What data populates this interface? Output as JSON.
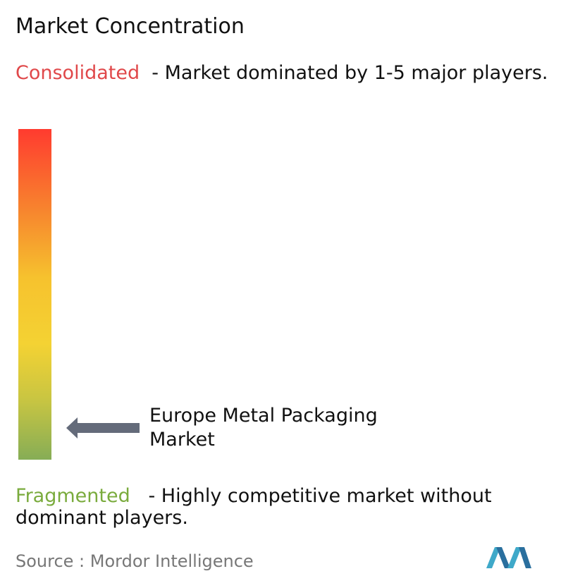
{
  "header": {
    "title": "Market Concentration"
  },
  "consolidated": {
    "label": "Consolidated",
    "description": "- Market dominated by 1-5 major players."
  },
  "marker": {
    "label": "Europe Metal Packaging Market"
  },
  "fragmented": {
    "label": "Fragmented",
    "description": "- Highly competitive market without dominant players."
  },
  "footer": {
    "source": "Source :  Mordor Intelligence"
  }
}
